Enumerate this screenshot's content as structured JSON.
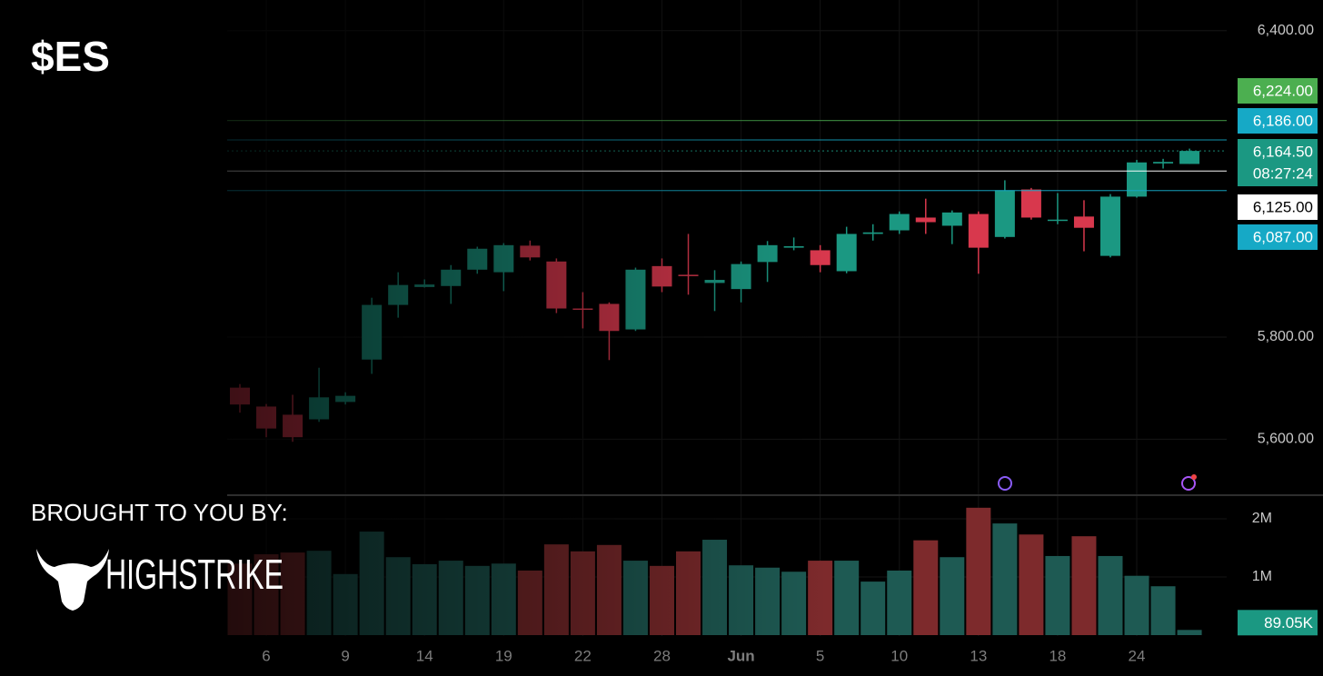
{
  "chart_data": {
    "type": "candlestick",
    "title": "$ES",
    "categories": [
      null,
      "6",
      null,
      null,
      "9",
      null,
      null,
      "14",
      null,
      null,
      "19",
      null,
      null,
      "22",
      null,
      null,
      "28",
      null,
      null,
      "Jun",
      null,
      null,
      "5",
      null,
      null,
      "10",
      null,
      null,
      "13",
      null,
      null,
      "18",
      null,
      null,
      "24",
      null,
      null
    ],
    "open": [
      5701,
      5664,
      5648,
      5639,
      5673,
      5756,
      5863,
      5898,
      5900,
      5932,
      5927,
      5979,
      5948,
      5856,
      5865,
      5815,
      5939,
      5922,
      5906,
      5894,
      5947,
      5975,
      5970,
      5929,
      6002,
      6009,
      6034,
      6018,
      6041,
      5996,
      6089,
      6028,
      6036,
      5959,
      6075,
      6140,
      6139
    ],
    "high": [
      5708,
      5669,
      5687,
      5740,
      5692,
      5877,
      5927,
      5913,
      5941,
      5977,
      5984,
      5989,
      5954,
      5888,
      5868,
      5936,
      5954,
      6002,
      5931,
      5948,
      5988,
      5995,
      5980,
      6016,
      6021,
      6046,
      6071,
      6048,
      6046,
      6107,
      6092,
      6082,
      6068,
      6080,
      6147,
      6149,
      6169
    ],
    "low": [
      5652,
      5604,
      5595,
      5634,
      5668,
      5728,
      5838,
      5897,
      5865,
      5924,
      5890,
      5950,
      5847,
      5817,
      5755,
      5812,
      5888,
      5883,
      5851,
      5868,
      5908,
      5970,
      5927,
      5925,
      5989,
      6002,
      6002,
      5982,
      5924,
      5993,
      6030,
      6021,
      5968,
      5956,
      6073,
      6130,
      6139
    ],
    "close": [
      5668,
      5621,
      5604,
      5682,
      5685,
      5863,
      5902,
      5903,
      5932,
      5973,
      5980,
      5956,
      5856,
      5855,
      5812,
      5932,
      5899,
      5921,
      5912,
      5943,
      5980,
      5978,
      5941,
      6002,
      6005,
      6041,
      6025,
      6044,
      5975,
      6087,
      6034,
      6030,
      6014,
      6075,
      6142,
      6143,
      6164.5
    ],
    "volume": [
      1230000,
      1390000,
      1420000,
      1450000,
      1050000,
      1780000,
      1340000,
      1220000,
      1280000,
      1190000,
      1230000,
      1110000,
      1560000,
      1440000,
      1550000,
      1280000,
      1190000,
      1440000,
      1640000,
      1200000,
      1160000,
      1090000,
      1280000,
      1280000,
      920000,
      1110000,
      1630000,
      1340000,
      2190000,
      1920000,
      1730000,
      1360000,
      1700000,
      1360000,
      1020000,
      840000,
      89050
    ],
    "volume_last_label": "89.05K",
    "up_color": "#1b9882",
    "down_color": "#d8384d",
    "volume_up_color": "#1e5a53",
    "volume_down_color": "#7d2a2c",
    "ylim": [
      5494,
      6460
    ],
    "yticks": [
      {
        "value": 5600,
        "label": "5,600.00"
      },
      {
        "value": 5800,
        "label": "5,800.00"
      },
      {
        "value": 6400,
        "label": "6,400.00"
      }
    ],
    "y2lim": [
      0,
      2406000
    ],
    "y2ticks": [
      {
        "value": 1000000,
        "label": "1M"
      },
      {
        "value": 2000000,
        "label": "2M"
      }
    ],
    "price_lines": [
      {
        "value": 6224,
        "label": "6,224.00",
        "color": "#4caf50"
      },
      {
        "value": 6186,
        "label": "6,186.00",
        "color": "#16a9c6"
      },
      {
        "value": 6164.5,
        "label": "6,164.50",
        "color": "#1b9882",
        "countdown": "08:27:24"
      },
      {
        "value": 6125,
        "label": "6,125.00",
        "color": "#ffffff"
      },
      {
        "value": 6087,
        "label": "6,087.00",
        "color": "#16a9c6"
      }
    ],
    "grid": true
  },
  "branding": {
    "caption": "BROUGHT TO YOU BY:",
    "name": "HIGHSTRIKE"
  }
}
